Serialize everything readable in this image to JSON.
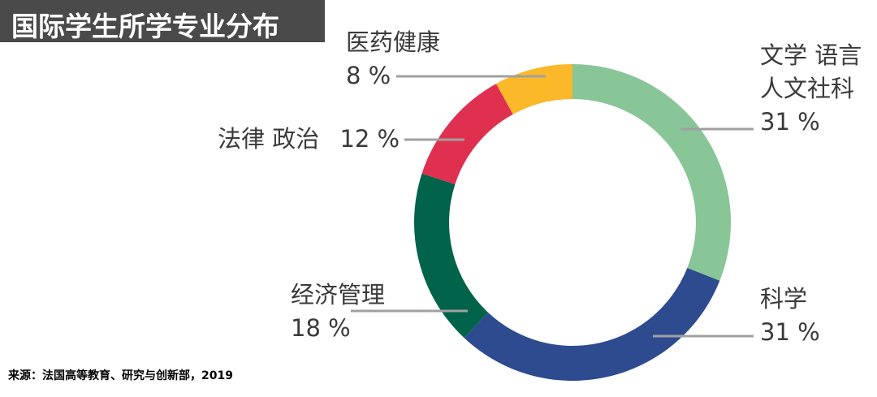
{
  "chart_data": {
    "type": "pie",
    "title": "国际学生所学专业分布",
    "source": "来源：法国高等教育、研究与创新部，2019",
    "slices": [
      {
        "label_lines": [
          "文学 语言",
          "人文社科"
        ],
        "value": 31,
        "value_text": "31 %",
        "color": "#88c597"
      },
      {
        "label_lines": [
          "科学"
        ],
        "value": 31,
        "value_text": "31 %",
        "color": "#2d4b8e"
      },
      {
        "label_lines": [
          "经济管理"
        ],
        "value": 18,
        "value_text": "18 %",
        "color": "#00634a"
      },
      {
        "label_lines": [
          "法律 政治"
        ],
        "value": 12,
        "value_text": "12 %",
        "color": "#e0304f"
      },
      {
        "label_lines": [
          "医药健康"
        ],
        "value": 8,
        "value_text": "8 %",
        "color": "#fbb829"
      }
    ]
  }
}
